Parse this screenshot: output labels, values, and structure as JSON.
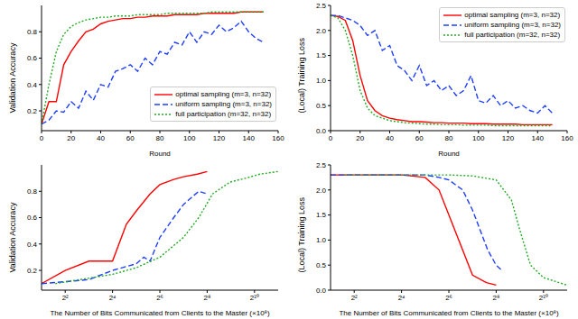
{
  "chart_data": [
    {
      "type": "line",
      "x_label": "Round",
      "y_label": "Validation Accuracy",
      "x": [
        0,
        5,
        10,
        15,
        20,
        25,
        30,
        35,
        40,
        45,
        50,
        55,
        60,
        65,
        70,
        75,
        80,
        85,
        90,
        95,
        100,
        105,
        110,
        115,
        120,
        125,
        130,
        135,
        140,
        145,
        150
      ],
      "xlim": [
        0,
        160
      ],
      "xticks": [
        0,
        20,
        40,
        60,
        80,
        100,
        120,
        140,
        160
      ],
      "ylim": [
        0.05,
        1.0
      ],
      "yticks": [
        0.2,
        0.4,
        0.6,
        0.8
      ],
      "grid": false,
      "legend": "lower right",
      "series": [
        {
          "name": "optimal sampling (m=3, n=32)",
          "color": "#ff0000",
          "line_style": "solid",
          "values": [
            0.1,
            0.27,
            0.27,
            0.55,
            0.65,
            0.73,
            0.8,
            0.82,
            0.86,
            0.88,
            0.89,
            0.9,
            0.9,
            0.91,
            0.91,
            0.92,
            0.92,
            0.92,
            0.93,
            0.93,
            0.93,
            0.93,
            0.94,
            0.94,
            0.94,
            0.94,
            0.94,
            0.95,
            0.95,
            0.95,
            0.95
          ]
        },
        {
          "name": "uniform sampling (m=3, n=32)",
          "color": "#1f3fff",
          "line_style": "dashed",
          "values": [
            0.1,
            0.13,
            0.2,
            0.19,
            0.27,
            0.22,
            0.35,
            0.28,
            0.4,
            0.38,
            0.5,
            0.52,
            0.55,
            0.5,
            0.6,
            0.55,
            0.65,
            0.63,
            0.72,
            0.7,
            0.8,
            0.72,
            0.8,
            0.78,
            0.85,
            0.8,
            0.83,
            0.88,
            0.8,
            0.75,
            0.72
          ]
        },
        {
          "name": "full participation (m=32, n=32)",
          "color": "#22aa22",
          "line_style": "dotted",
          "values": [
            0.1,
            0.4,
            0.65,
            0.78,
            0.84,
            0.87,
            0.89,
            0.9,
            0.91,
            0.91,
            0.92,
            0.92,
            0.92,
            0.93,
            0.93,
            0.93,
            0.93,
            0.94,
            0.94,
            0.94,
            0.94,
            0.94,
            0.94,
            0.95,
            0.95,
            0.95,
            0.95,
            0.95,
            0.95,
            0.95,
            0.95
          ]
        }
      ]
    },
    {
      "type": "line",
      "x_label": "Round",
      "y_label": "(Local) Training Loss",
      "x": [
        0,
        5,
        10,
        15,
        20,
        25,
        30,
        35,
        40,
        45,
        50,
        55,
        60,
        65,
        70,
        75,
        80,
        85,
        90,
        95,
        100,
        105,
        110,
        115,
        120,
        125,
        130,
        135,
        140,
        145,
        150
      ],
      "xlim": [
        0,
        160
      ],
      "xticks": [
        0,
        20,
        40,
        60,
        80,
        100,
        120,
        140,
        160
      ],
      "ylim": [
        0,
        2.5
      ],
      "yticks": [
        {
          "value": 0,
          "label": "0.0"
        },
        0.5,
        {
          "value": 1,
          "label": "1.0"
        },
        1.5,
        {
          "value": 2,
          "label": "2.0"
        },
        2.5
      ],
      "grid": false,
      "legend": "upper right",
      "series": [
        {
          "name": "optimal sampling (m=3, n=32)",
          "color": "#ff0000",
          "line_style": "solid",
          "values": [
            2.3,
            2.28,
            2.2,
            1.8,
            1.1,
            0.6,
            0.4,
            0.3,
            0.25,
            0.22,
            0.2,
            0.18,
            0.18,
            0.17,
            0.16,
            0.16,
            0.15,
            0.15,
            0.15,
            0.14,
            0.14,
            0.14,
            0.13,
            0.13,
            0.13,
            0.13,
            0.12,
            0.12,
            0.12,
            0.12,
            0.12
          ]
        },
        {
          "name": "uniform sampling (m=3, n=32)",
          "color": "#1f3fff",
          "line_style": "dashed",
          "values": [
            2.3,
            2.3,
            2.25,
            2.2,
            2.1,
            1.9,
            2.0,
            1.6,
            1.7,
            1.3,
            1.2,
            1.0,
            1.3,
            0.9,
            1.0,
            0.8,
            0.9,
            0.7,
            0.8,
            1.1,
            0.6,
            0.55,
            0.7,
            0.5,
            0.6,
            0.45,
            0.5,
            0.4,
            0.35,
            0.5,
            0.35
          ]
        },
        {
          "name": "full participation (m=32, n=32)",
          "color": "#22aa22",
          "line_style": "dotted",
          "values": [
            2.3,
            2.25,
            2.0,
            1.5,
            0.8,
            0.45,
            0.3,
            0.25,
            0.2,
            0.18,
            0.16,
            0.15,
            0.14,
            0.13,
            0.13,
            0.12,
            0.12,
            0.12,
            0.11,
            0.11,
            0.11,
            0.11,
            0.1,
            0.1,
            0.1,
            0.1,
            0.1,
            0.1,
            0.1,
            0.1,
            0.1
          ]
        }
      ]
    },
    {
      "type": "line",
      "x_label": "The Number of Bits Communicated from Clients to the Master (×10⁸)",
      "y_label": "Validation Accuracy",
      "log": "x",
      "xlim": [
        2,
        2048
      ],
      "xticks": [
        {
          "value": 4,
          "label": "2²"
        },
        {
          "value": 16,
          "label": "2⁴"
        },
        {
          "value": 64,
          "label": "2⁶"
        },
        {
          "value": 256,
          "label": "2⁸"
        },
        {
          "value": 1024,
          "label": "2¹⁰"
        }
      ],
      "ylim": [
        0.05,
        1.0
      ],
      "yticks": [
        0.2,
        0.4,
        0.6,
        0.8
      ],
      "grid": false,
      "series": [
        {
          "name": "optimal sampling (m=3, n=32)",
          "color": "#ff0000",
          "line_style": "solid",
          "x": [
            2,
            4,
            8,
            16,
            24,
            32,
            48,
            64,
            96,
            128,
            192,
            256
          ],
          "values": [
            0.1,
            0.2,
            0.27,
            0.27,
            0.55,
            0.65,
            0.78,
            0.85,
            0.89,
            0.91,
            0.93,
            0.95
          ]
        },
        {
          "name": "uniform sampling (m=3, n=32)",
          "color": "#1f3fff",
          "line_style": "dashed",
          "x": [
            2,
            8,
            16,
            32,
            40,
            48,
            64,
            96,
            128,
            160,
            200,
            256
          ],
          "values": [
            0.1,
            0.13,
            0.2,
            0.25,
            0.3,
            0.27,
            0.45,
            0.6,
            0.7,
            0.75,
            0.8,
            0.78
          ]
        },
        {
          "name": "full participation (m=32, n=32)",
          "color": "#22aa22",
          "line_style": "dotted",
          "x": [
            3,
            16,
            32,
            64,
            128,
            200,
            300,
            500,
            800,
            1200,
            2048
          ],
          "values": [
            0.1,
            0.17,
            0.22,
            0.3,
            0.45,
            0.6,
            0.78,
            0.87,
            0.9,
            0.93,
            0.95
          ]
        }
      ]
    },
    {
      "type": "line",
      "x_label": "The Number of Bits Communicated from Clients to the Master (×10⁸)",
      "y_label": "(Local) Training Loss",
      "log": "x",
      "xlim": [
        2,
        2048
      ],
      "xticks": [
        {
          "value": 4,
          "label": "2²"
        },
        {
          "value": 16,
          "label": "2⁴"
        },
        {
          "value": 64,
          "label": "2⁶"
        },
        {
          "value": 256,
          "label": "2⁸"
        },
        {
          "value": 1024,
          "label": "2¹⁰"
        }
      ],
      "ylim": [
        0,
        2.5
      ],
      "yticks": [
        {
          "value": 0,
          "label": "0.0"
        },
        0.5,
        {
          "value": 1,
          "label": "1.0"
        },
        1.5,
        {
          "value": 2,
          "label": "2.0"
        },
        2.5
      ],
      "grid": false,
      "series": [
        {
          "name": "optimal sampling (m=3, n=32)",
          "color": "#ff0000",
          "line_style": "solid",
          "x": [
            2,
            16,
            32,
            48,
            64,
            96,
            128,
            192,
            256
          ],
          "values": [
            2.3,
            2.3,
            2.25,
            2.0,
            1.5,
            0.8,
            0.3,
            0.15,
            0.1
          ]
        },
        {
          "name": "uniform sampling (m=3, n=32)",
          "color": "#1f3fff",
          "line_style": "dashed",
          "x": [
            2,
            32,
            48,
            64,
            96,
            128,
            160,
            200,
            256,
            300
          ],
          "values": [
            2.3,
            2.3,
            2.25,
            2.2,
            2.0,
            1.6,
            1.2,
            0.8,
            0.5,
            0.4
          ]
        },
        {
          "name": "full participation (m=32, n=32)",
          "color": "#22aa22",
          "line_style": "dotted",
          "x": [
            3,
            64,
            128,
            256,
            400,
            512,
            700,
            1024,
            2048
          ],
          "values": [
            2.3,
            2.3,
            2.28,
            2.2,
            1.8,
            1.2,
            0.5,
            0.25,
            0.1
          ]
        }
      ]
    }
  ]
}
